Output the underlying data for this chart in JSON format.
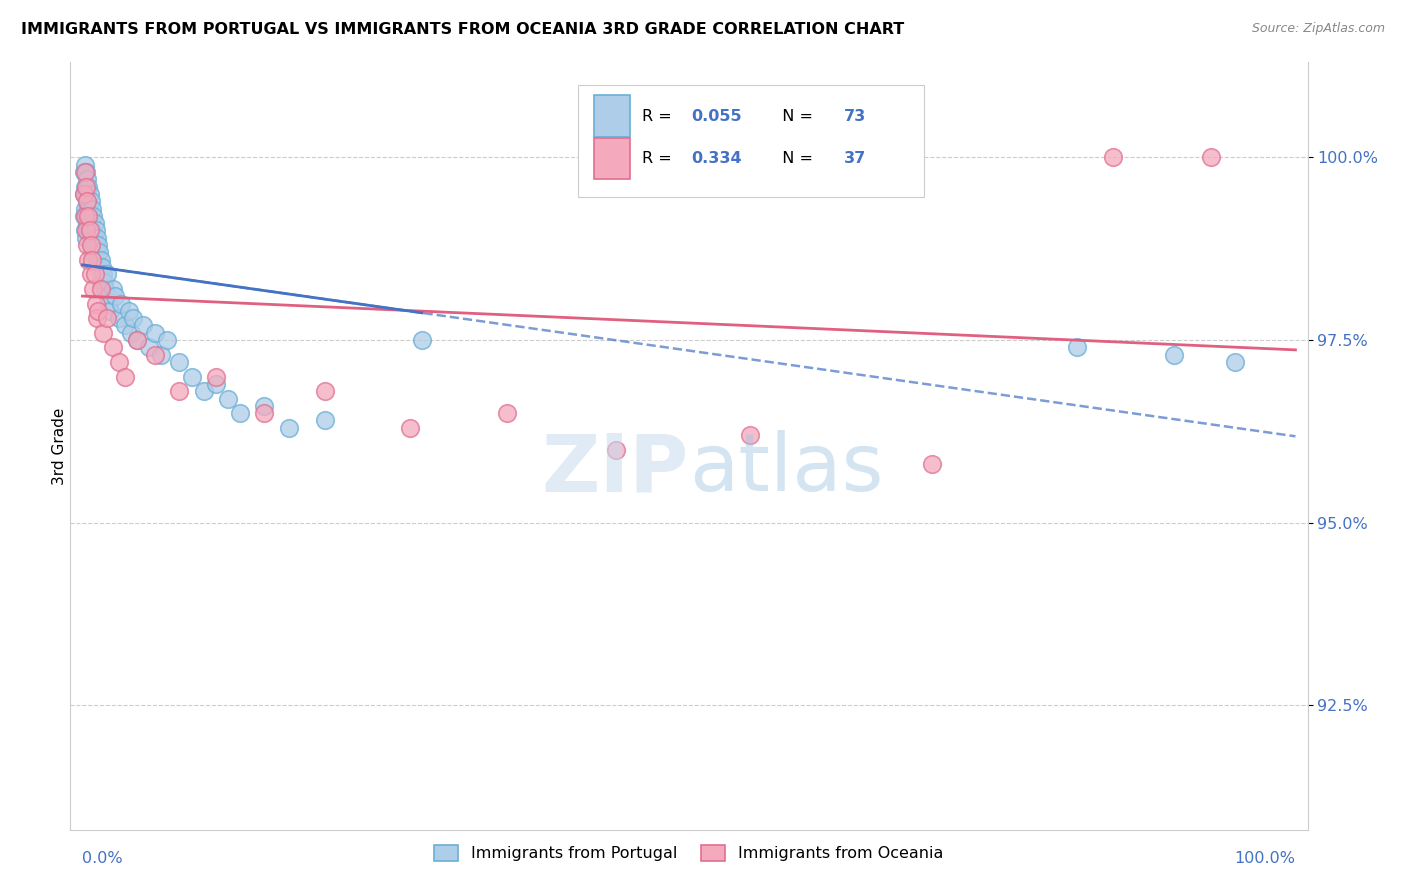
{
  "title": "IMMIGRANTS FROM PORTUGAL VS IMMIGRANTS FROM OCEANIA 3RD GRADE CORRELATION CHART",
  "source": "Source: ZipAtlas.com",
  "ylabel": "3rd Grade",
  "yticks": [
    92.5,
    95.0,
    97.5,
    100.0
  ],
  "xlim": [
    -0.01,
    1.01
  ],
  "ylim": [
    90.8,
    101.3
  ],
  "color_blue_fill": "#aecde8",
  "color_blue_edge": "#6aaed6",
  "color_pink_fill": "#f4a9bc",
  "color_pink_edge": "#e07090",
  "color_blue_line": "#4472c4",
  "color_pink_line": "#e06080",
  "legend_r1": "0.055",
  "legend_n1": "73",
  "legend_r2": "0.334",
  "legend_n2": "37",
  "watermark_zip": "ZIP",
  "watermark_atlas": "atlas",
  "portugal_x": [
    0.001,
    0.001,
    0.001,
    0.002,
    0.002,
    0.002,
    0.002,
    0.003,
    0.003,
    0.003,
    0.003,
    0.004,
    0.004,
    0.004,
    0.005,
    0.005,
    0.005,
    0.006,
    0.006,
    0.007,
    0.007,
    0.007,
    0.008,
    0.008,
    0.008,
    0.009,
    0.009,
    0.01,
    0.01,
    0.011,
    0.011,
    0.012,
    0.012,
    0.013,
    0.013,
    0.014,
    0.015,
    0.015,
    0.016,
    0.017,
    0.018,
    0.019,
    0.02,
    0.021,
    0.022,
    0.023,
    0.025,
    0.027,
    0.03,
    0.032,
    0.035,
    0.038,
    0.04,
    0.042,
    0.045,
    0.05,
    0.055,
    0.06,
    0.065,
    0.07,
    0.08,
    0.09,
    0.1,
    0.11,
    0.12,
    0.13,
    0.15,
    0.17,
    0.2,
    0.28,
    0.82,
    0.9,
    0.95
  ],
  "portugal_y": [
    99.8,
    99.5,
    99.2,
    99.9,
    99.6,
    99.3,
    99.0,
    99.8,
    99.5,
    99.2,
    98.9,
    99.7,
    99.4,
    99.1,
    99.6,
    99.3,
    99.0,
    99.5,
    99.2,
    99.4,
    99.1,
    98.8,
    99.3,
    99.0,
    98.7,
    99.2,
    98.9,
    99.1,
    98.8,
    99.0,
    98.7,
    98.9,
    98.6,
    98.8,
    98.5,
    98.7,
    98.6,
    98.3,
    98.5,
    98.4,
    98.3,
    98.2,
    98.4,
    98.1,
    98.0,
    97.9,
    98.2,
    98.1,
    97.8,
    98.0,
    97.7,
    97.9,
    97.6,
    97.8,
    97.5,
    97.7,
    97.4,
    97.6,
    97.3,
    97.5,
    97.2,
    97.0,
    96.8,
    96.9,
    96.7,
    96.5,
    96.6,
    96.3,
    96.4,
    97.5,
    97.4,
    97.3,
    97.2
  ],
  "oceania_x": [
    0.001,
    0.002,
    0.002,
    0.003,
    0.003,
    0.004,
    0.004,
    0.005,
    0.005,
    0.006,
    0.007,
    0.007,
    0.008,
    0.009,
    0.01,
    0.011,
    0.012,
    0.013,
    0.015,
    0.017,
    0.02,
    0.025,
    0.03,
    0.035,
    0.045,
    0.06,
    0.08,
    0.11,
    0.15,
    0.2,
    0.27,
    0.35,
    0.44,
    0.55,
    0.7,
    0.85,
    0.93
  ],
  "oceania_y": [
    99.5,
    99.8,
    99.2,
    99.6,
    99.0,
    99.4,
    98.8,
    99.2,
    98.6,
    99.0,
    98.8,
    98.4,
    98.6,
    98.2,
    98.4,
    98.0,
    97.8,
    97.9,
    98.2,
    97.6,
    97.8,
    97.4,
    97.2,
    97.0,
    97.5,
    97.3,
    96.8,
    97.0,
    96.5,
    96.8,
    96.3,
    96.5,
    96.0,
    96.2,
    95.8,
    100.0,
    100.0
  ]
}
